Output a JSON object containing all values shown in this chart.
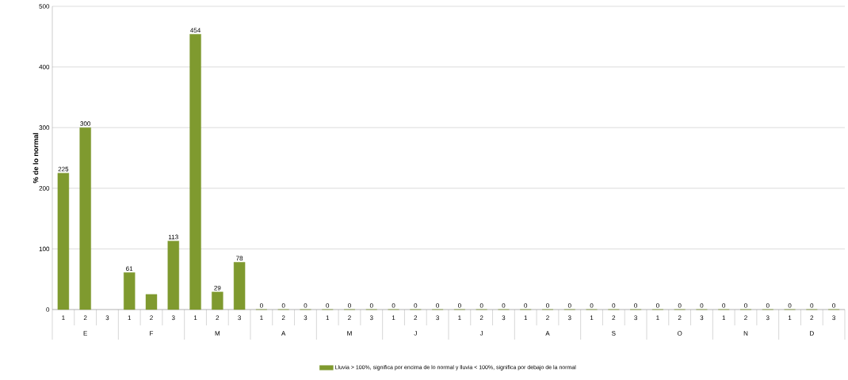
{
  "chart_data": {
    "type": "bar",
    "ylabel": "% de lo normal",
    "categories": [
      "1",
      "2",
      "3",
      "1",
      "2",
      "3",
      "1",
      "2",
      "3",
      "1",
      "2",
      "3",
      "1",
      "2",
      "3",
      "1",
      "2",
      "3",
      "1",
      "2",
      "3",
      "1",
      "2",
      "3",
      "1",
      "2",
      "3",
      "1",
      "2",
      "3",
      "1",
      "2",
      "3",
      "1",
      "2",
      "3"
    ],
    "series": [
      {
        "name": "Lluvia > 100%, significa por encima de lo normal y lluvia < 100%, significa por debajo de la normal",
        "color": "#7f9a2f",
        "values": [
          225,
          300,
          null,
          61,
          25,
          113,
          454,
          29,
          78,
          0,
          0,
          0,
          0,
          0,
          0,
          0,
          0,
          0,
          0,
          0,
          0,
          0,
          0,
          0,
          0,
          0,
          0,
          0,
          0,
          0,
          0,
          0,
          0,
          0,
          0,
          0
        ],
        "value_labels": [
          "225",
          "300",
          null,
          "61",
          null,
          "113",
          "454",
          "29",
          "78",
          "0",
          "0",
          "0",
          "0",
          "0",
          "0",
          "0",
          "0",
          "0",
          "0",
          "0",
          "0",
          "0",
          "0",
          "0",
          "0",
          "0",
          "0",
          "0",
          "0",
          "0",
          "0",
          "0",
          "0",
          "0",
          "0",
          "0"
        ]
      }
    ],
    "annotations": [
      "E",
      "F",
      "M",
      "A",
      "M",
      "J",
      "J",
      "A",
      "S",
      "O",
      "N",
      "D"
    ],
    "ylim": [
      0,
      500
    ],
    "yticks": [
      0,
      100,
      200,
      300,
      400,
      500
    ],
    "grid": "y",
    "legend": "bottom"
  }
}
